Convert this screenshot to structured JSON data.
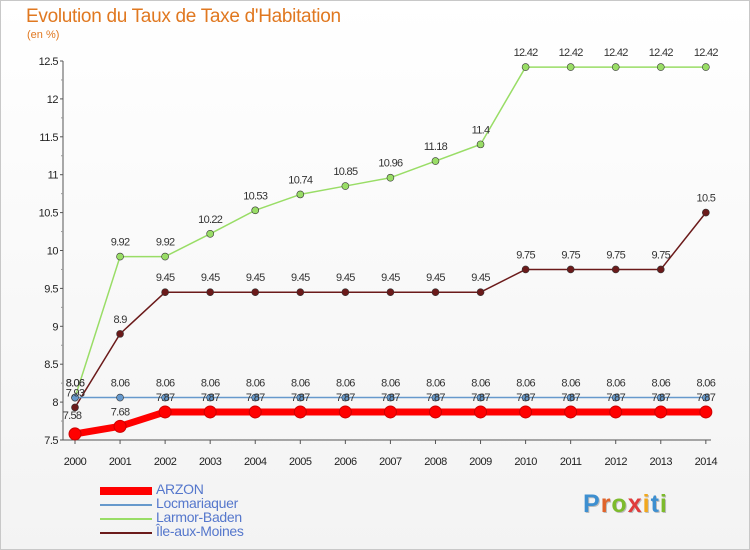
{
  "header": {
    "title": "Evolution du Taux de Taxe d'Habitation",
    "subtitle": "(en %)"
  },
  "logo": {
    "text": "Proxiti",
    "letter_colors": [
      "#3d8fd0",
      "#e0632a",
      "#7dbb2c",
      "#e03c3c",
      "#f2a81d",
      "#3d8fd0",
      "#7dbb2c"
    ]
  },
  "chart_data": {
    "type": "line",
    "x": [
      "2000",
      "2001",
      "2002",
      "2003",
      "2004",
      "2005",
      "2006",
      "2007",
      "2008",
      "2009",
      "2010",
      "2011",
      "2012",
      "2013",
      "2014"
    ],
    "y_ticks": [
      "7.5",
      "8",
      "8.5",
      "9",
      "9.5",
      "10",
      "10.5",
      "11",
      "11.5",
      "12",
      "12.5"
    ],
    "ylim": [
      7.5,
      12.5
    ],
    "grid": false,
    "legend_position": "bottom-left",
    "series": [
      {
        "name": "ARZON",
        "color": "#ff0000",
        "values": [
          7.58,
          7.68,
          7.87,
          7.87,
          7.87,
          7.87,
          7.87,
          7.87,
          7.87,
          7.87,
          7.87,
          7.87,
          7.87,
          7.87,
          7.87
        ],
        "labels": [
          "7.58",
          "7.68",
          "7.87",
          "7.87",
          "7.87",
          "7.87",
          "7.87",
          "7.87",
          "7.87",
          "7.87",
          "7.87",
          "7.87",
          "7.87",
          "7.87",
          "7.87"
        ]
      },
      {
        "name": "Locmariaquer",
        "color": "#6699cc",
        "values": [
          8.06,
          8.06,
          8.06,
          8.06,
          8.06,
          8.06,
          8.06,
          8.06,
          8.06,
          8.06,
          8.06,
          8.06,
          8.06,
          8.06,
          8.06
        ],
        "labels": [
          "8.06",
          "8.06",
          "8.06",
          "8.06",
          "8.06",
          "8.06",
          "8.06",
          "8.06",
          "8.06",
          "8.06",
          "8.06",
          "8.06",
          "8.06",
          "8.06",
          "8.06"
        ]
      },
      {
        "name": "Larmor-Baden",
        "color": "#99dd66",
        "values": [
          8.06,
          9.92,
          9.92,
          10.22,
          10.53,
          10.74,
          10.85,
          10.96,
          11.18,
          11.4,
          12.42,
          12.42,
          12.42,
          12.42,
          12.42
        ],
        "labels": [
          "8.06",
          "9.92",
          "9.92",
          "10.22",
          "10.53",
          "10.74",
          "10.85",
          "10.96",
          "11.18",
          "11.4",
          "12.42",
          "12.42",
          "12.42",
          "12.42",
          "12.42"
        ]
      },
      {
        "name": "Île-aux-Moines",
        "color": "#6b1a1a",
        "values": [
          7.93,
          8.9,
          9.45,
          9.45,
          9.45,
          9.45,
          9.45,
          9.45,
          9.45,
          9.45,
          9.75,
          9.75,
          9.75,
          9.75,
          10.5
        ],
        "labels": [
          "7.93",
          "8.9",
          "9.45",
          "9.45",
          "9.45",
          "9.45",
          "9.45",
          "9.45",
          "9.45",
          "9.45",
          "9.75",
          "9.75",
          "9.75",
          "9.75",
          "10.5"
        ]
      }
    ]
  }
}
